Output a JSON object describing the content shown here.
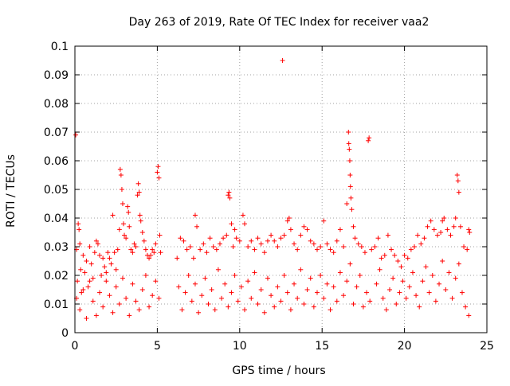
{
  "chart_data": {
    "type": "scatter",
    "title": "Day 263 of 2019, Rate Of TEC Index for receiver vaa2",
    "xlabel": "GPS time / hours",
    "ylabel": "ROTI / TECUs",
    "xlim": [
      0,
      25
    ],
    "ylim": [
      0,
      0.1
    ],
    "xticks": [
      "0",
      "5",
      "10",
      "15",
      "20",
      "25"
    ],
    "yticks": [
      "0",
      "0.01",
      "0.02",
      "0.03",
      "0.04",
      "0.05",
      "0.06",
      "0.07",
      "0.08",
      "0.09",
      "0.1"
    ],
    "xtick_values": [
      0,
      5,
      10,
      15,
      20,
      25
    ],
    "ytick_values": [
      0,
      0.01,
      0.02,
      0.03,
      0.04,
      0.05,
      0.06,
      0.07,
      0.08,
      0.09,
      0.1
    ],
    "grid": true,
    "marker": "plus",
    "color": "#ff0000",
    "series": [
      {
        "name": "ROTI",
        "points": [
          [
            0.05,
            0.069
          ],
          [
            0.1,
            0.029
          ],
          [
            0.15,
            0.018
          ],
          [
            0.2,
            0.038
          ],
          [
            0.25,
            0.036
          ],
          [
            0.3,
            0.031
          ],
          [
            0.35,
            0.022
          ],
          [
            0.4,
            0.014
          ],
          [
            0.5,
            0.027
          ],
          [
            0.6,
            0.021
          ],
          [
            0.7,
            0.025
          ],
          [
            0.8,
            0.016
          ],
          [
            0.9,
            0.03
          ],
          [
            1.0,
            0.024
          ],
          [
            1.1,
            0.019
          ],
          [
            1.2,
            0.028
          ],
          [
            1.3,
            0.032
          ],
          [
            1.4,
            0.031
          ],
          [
            1.5,
            0.027
          ],
          [
            1.6,
            0.02
          ],
          [
            1.7,
            0.026
          ],
          [
            1.8,
            0.023
          ],
          [
            1.9,
            0.018
          ],
          [
            2.0,
            0.028
          ],
          [
            2.1,
            0.026
          ],
          [
            2.2,
            0.024
          ],
          [
            2.3,
            0.041
          ],
          [
            2.4,
            0.028
          ],
          [
            2.5,
            0.022
          ],
          [
            2.6,
            0.029
          ],
          [
            2.7,
            0.036
          ],
          [
            2.75,
            0.057
          ],
          [
            2.8,
            0.055
          ],
          [
            2.85,
            0.05
          ],
          [
            2.9,
            0.045
          ],
          [
            2.95,
            0.038
          ],
          [
            3.0,
            0.034
          ],
          [
            3.1,
            0.033
          ],
          [
            3.2,
            0.044
          ],
          [
            3.25,
            0.042
          ],
          [
            3.3,
            0.037
          ],
          [
            3.4,
            0.029
          ],
          [
            3.5,
            0.028
          ],
          [
            3.6,
            0.031
          ],
          [
            3.7,
            0.03
          ],
          [
            3.8,
            0.048
          ],
          [
            3.85,
            0.052
          ],
          [
            3.9,
            0.049
          ],
          [
            3.95,
            0.041
          ],
          [
            4.0,
            0.039
          ],
          [
            4.1,
            0.035
          ],
          [
            4.2,
            0.032
          ],
          [
            4.3,
            0.029
          ],
          [
            4.4,
            0.027
          ],
          [
            4.5,
            0.026
          ],
          [
            4.6,
            0.027
          ],
          [
            4.7,
            0.029
          ],
          [
            4.8,
            0.028
          ],
          [
            4.9,
            0.031
          ],
          [
            5.0,
            0.056
          ],
          [
            5.05,
            0.058
          ],
          [
            5.1,
            0.054
          ],
          [
            5.15,
            0.034
          ],
          [
            5.2,
            0.028
          ],
          [
            6.2,
            0.026
          ],
          [
            6.4,
            0.033
          ],
          [
            6.6,
            0.032
          ],
          [
            6.8,
            0.029
          ],
          [
            7.0,
            0.03
          ],
          [
            7.2,
            0.026
          ],
          [
            7.3,
            0.041
          ],
          [
            7.4,
            0.037
          ],
          [
            7.6,
            0.029
          ],
          [
            7.8,
            0.031
          ],
          [
            8.0,
            0.028
          ],
          [
            8.2,
            0.033
          ],
          [
            8.4,
            0.03
          ],
          [
            8.6,
            0.029
          ],
          [
            8.8,
            0.031
          ],
          [
            9.0,
            0.033
          ],
          [
            9.2,
            0.034
          ],
          [
            9.3,
            0.048
          ],
          [
            9.35,
            0.049
          ],
          [
            9.4,
            0.047
          ],
          [
            9.5,
            0.038
          ],
          [
            9.6,
            0.03
          ],
          [
            9.7,
            0.036
          ],
          [
            9.8,
            0.033
          ],
          [
            10.0,
            0.032
          ],
          [
            10.2,
            0.041
          ],
          [
            10.3,
            0.038
          ],
          [
            10.5,
            0.03
          ],
          [
            10.7,
            0.032
          ],
          [
            10.9,
            0.029
          ],
          [
            11.1,
            0.033
          ],
          [
            11.3,
            0.031
          ],
          [
            11.5,
            0.028
          ],
          [
            11.7,
            0.032
          ],
          [
            11.9,
            0.034
          ],
          [
            12.1,
            0.032
          ],
          [
            12.3,
            0.03
          ],
          [
            12.5,
            0.033
          ],
          [
            12.6,
            0.095
          ],
          [
            12.7,
            0.034
          ],
          [
            12.9,
            0.039
          ],
          [
            13.0,
            0.04
          ],
          [
            13.1,
            0.036
          ],
          [
            13.3,
            0.031
          ],
          [
            13.5,
            0.029
          ],
          [
            13.7,
            0.034
          ],
          [
            13.9,
            0.037
          ],
          [
            14.1,
            0.036
          ],
          [
            14.3,
            0.032
          ],
          [
            14.5,
            0.031
          ],
          [
            14.7,
            0.029
          ],
          [
            14.9,
            0.03
          ],
          [
            15.1,
            0.039
          ],
          [
            15.3,
            0.031
          ],
          [
            15.5,
            0.029
          ],
          [
            15.7,
            0.028
          ],
          [
            15.9,
            0.032
          ],
          [
            16.1,
            0.036
          ],
          [
            16.3,
            0.03
          ],
          [
            16.5,
            0.045
          ],
          [
            16.6,
            0.07
          ],
          [
            16.62,
            0.066
          ],
          [
            16.65,
            0.064
          ],
          [
            16.68,
            0.06
          ],
          [
            16.7,
            0.055
          ],
          [
            16.72,
            0.051
          ],
          [
            16.75,
            0.047
          ],
          [
            16.8,
            0.043
          ],
          [
            16.9,
            0.037
          ],
          [
            17.0,
            0.033
          ],
          [
            17.2,
            0.031
          ],
          [
            17.4,
            0.03
          ],
          [
            17.6,
            0.028
          ],
          [
            17.8,
            0.067
          ],
          [
            17.85,
            0.068
          ],
          [
            18.0,
            0.029
          ],
          [
            18.2,
            0.03
          ],
          [
            18.4,
            0.033
          ],
          [
            18.6,
            0.026
          ],
          [
            18.8,
            0.027
          ],
          [
            19.0,
            0.034
          ],
          [
            19.2,
            0.029
          ],
          [
            19.4,
            0.027
          ],
          [
            19.6,
            0.025
          ],
          [
            19.8,
            0.023
          ],
          [
            20.0,
            0.027
          ],
          [
            20.2,
            0.026
          ],
          [
            20.4,
            0.029
          ],
          [
            20.6,
            0.03
          ],
          [
            20.8,
            0.034
          ],
          [
            21.0,
            0.031
          ],
          [
            21.2,
            0.033
          ],
          [
            21.4,
            0.037
          ],
          [
            21.6,
            0.039
          ],
          [
            21.8,
            0.036
          ],
          [
            22.0,
            0.034
          ],
          [
            22.2,
            0.035
          ],
          [
            22.3,
            0.039
          ],
          [
            22.4,
            0.04
          ],
          [
            22.6,
            0.036
          ],
          [
            22.8,
            0.034
          ],
          [
            23.0,
            0.037
          ],
          [
            23.1,
            0.04
          ],
          [
            23.2,
            0.055
          ],
          [
            23.25,
            0.053
          ],
          [
            23.3,
            0.049
          ],
          [
            23.4,
            0.037
          ],
          [
            23.6,
            0.03
          ],
          [
            23.8,
            0.029
          ],
          [
            23.9,
            0.036
          ],
          [
            23.95,
            0.035
          ],
          [
            0.1,
            0.012
          ],
          [
            0.3,
            0.008
          ],
          [
            0.5,
            0.015
          ],
          [
            0.7,
            0.005
          ],
          [
            0.9,
            0.018
          ],
          [
            1.1,
            0.011
          ],
          [
            1.3,
            0.006
          ],
          [
            1.5,
            0.014
          ],
          [
            1.7,
            0.009
          ],
          [
            1.9,
            0.021
          ],
          [
            2.1,
            0.013
          ],
          [
            2.3,
            0.007
          ],
          [
            2.5,
            0.016
          ],
          [
            2.7,
            0.01
          ],
          [
            2.9,
            0.019
          ],
          [
            3.1,
            0.012
          ],
          [
            3.3,
            0.006
          ],
          [
            3.5,
            0.017
          ],
          [
            3.7,
            0.011
          ],
          [
            3.9,
            0.008
          ],
          [
            4.1,
            0.015
          ],
          [
            4.3,
            0.02
          ],
          [
            4.5,
            0.009
          ],
          [
            4.7,
            0.013
          ],
          [
            4.9,
            0.018
          ],
          [
            5.1,
            0.012
          ],
          [
            6.3,
            0.016
          ],
          [
            6.5,
            0.008
          ],
          [
            6.7,
            0.014
          ],
          [
            6.9,
            0.02
          ],
          [
            7.1,
            0.011
          ],
          [
            7.3,
            0.017
          ],
          [
            7.5,
            0.007
          ],
          [
            7.7,
            0.013
          ],
          [
            7.9,
            0.019
          ],
          [
            8.1,
            0.01
          ],
          [
            8.3,
            0.015
          ],
          [
            8.5,
            0.008
          ],
          [
            8.7,
            0.022
          ],
          [
            8.9,
            0.012
          ],
          [
            9.1,
            0.017
          ],
          [
            9.3,
            0.009
          ],
          [
            9.5,
            0.014
          ],
          [
            9.7,
            0.02
          ],
          [
            9.9,
            0.011
          ],
          [
            10.1,
            0.016
          ],
          [
            10.3,
            0.008
          ],
          [
            10.5,
            0.018
          ],
          [
            10.7,
            0.012
          ],
          [
            10.9,
            0.021
          ],
          [
            11.1,
            0.01
          ],
          [
            11.3,
            0.015
          ],
          [
            11.5,
            0.007
          ],
          [
            11.7,
            0.019
          ],
          [
            11.9,
            0.013
          ],
          [
            12.1,
            0.009
          ],
          [
            12.3,
            0.016
          ],
          [
            12.5,
            0.011
          ],
          [
            12.7,
            0.02
          ],
          [
            12.9,
            0.014
          ],
          [
            13.1,
            0.008
          ],
          [
            13.3,
            0.017
          ],
          [
            13.5,
            0.012
          ],
          [
            13.7,
            0.022
          ],
          [
            13.9,
            0.01
          ],
          [
            14.1,
            0.015
          ],
          [
            14.3,
            0.019
          ],
          [
            14.5,
            0.009
          ],
          [
            14.7,
            0.014
          ],
          [
            14.9,
            0.02
          ],
          [
            15.1,
            0.012
          ],
          [
            15.3,
            0.017
          ],
          [
            15.5,
            0.008
          ],
          [
            15.7,
            0.016
          ],
          [
            15.9,
            0.011
          ],
          [
            16.1,
            0.021
          ],
          [
            16.3,
            0.013
          ],
          [
            16.5,
            0.018
          ],
          [
            16.7,
            0.024
          ],
          [
            16.9,
            0.01
          ],
          [
            17.1,
            0.016
          ],
          [
            17.3,
            0.02
          ],
          [
            17.5,
            0.009
          ],
          [
            17.7,
            0.014
          ],
          [
            17.9,
            0.011
          ],
          [
            18.3,
            0.017
          ],
          [
            18.5,
            0.022
          ],
          [
            18.7,
            0.012
          ],
          [
            18.9,
            0.008
          ],
          [
            19.1,
            0.015
          ],
          [
            19.3,
            0.019
          ],
          [
            19.5,
            0.01
          ],
          [
            19.7,
            0.014
          ],
          [
            19.9,
            0.018
          ],
          [
            20.1,
            0.012
          ],
          [
            20.3,
            0.016
          ],
          [
            20.5,
            0.021
          ],
          [
            20.7,
            0.013
          ],
          [
            20.9,
            0.009
          ],
          [
            21.1,
            0.018
          ],
          [
            21.3,
            0.023
          ],
          [
            21.5,
            0.014
          ],
          [
            21.7,
            0.02
          ],
          [
            21.9,
            0.011
          ],
          [
            22.1,
            0.017
          ],
          [
            22.3,
            0.025
          ],
          [
            22.5,
            0.015
          ],
          [
            22.7,
            0.021
          ],
          [
            22.9,
            0.012
          ],
          [
            23.1,
            0.019
          ],
          [
            23.3,
            0.024
          ],
          [
            23.5,
            0.014
          ],
          [
            23.7,
            0.009
          ],
          [
            23.9,
            0.006
          ]
        ]
      }
    ]
  }
}
